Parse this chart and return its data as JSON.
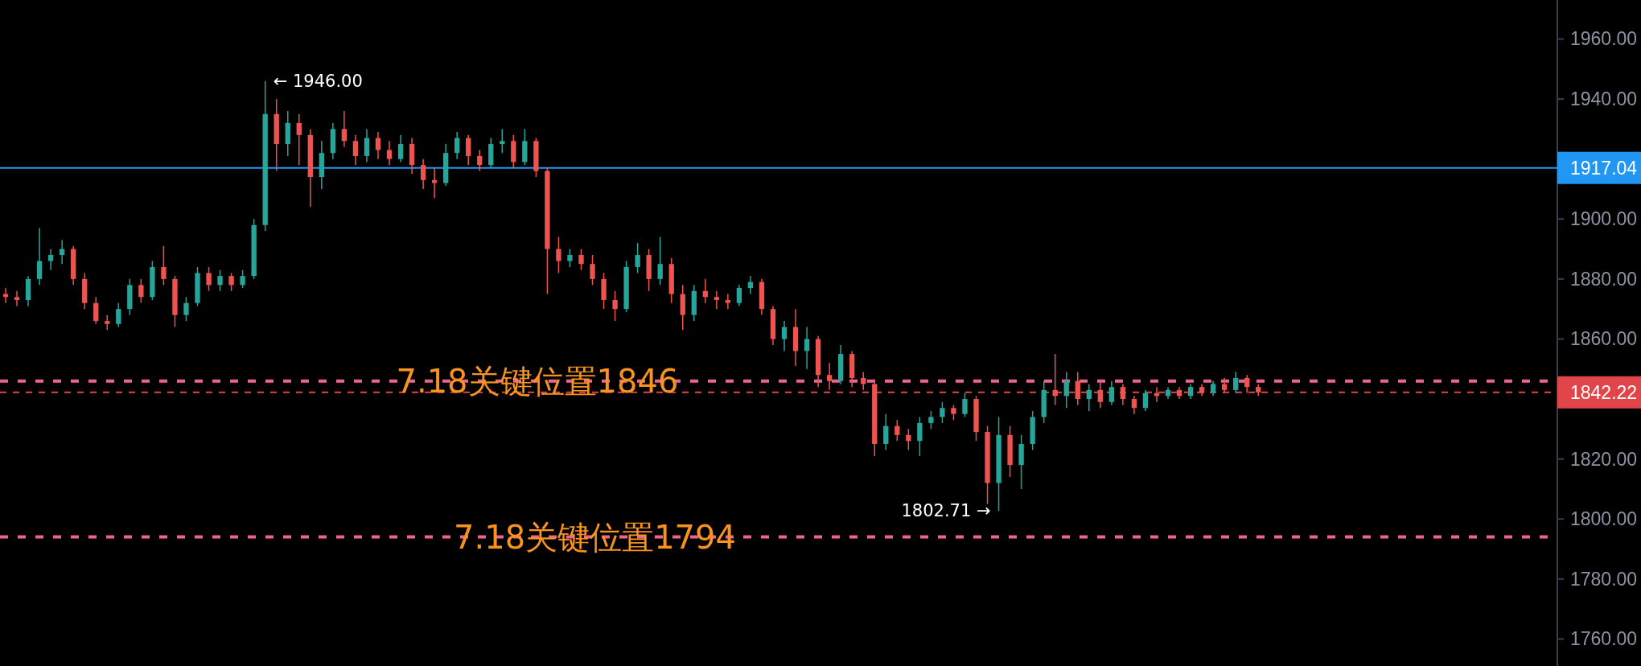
{
  "chart_data": {
    "type": "candlestick",
    "categories": [
      null,
      null,
      null,
      null,
      null,
      null,
      null,
      null,
      null,
      null,
      null,
      null,
      null,
      null,
      null,
      null,
      null,
      null,
      null,
      null,
      null,
      null,
      null,
      null,
      null,
      null,
      null,
      null,
      null,
      null,
      null,
      null,
      null,
      null,
      null,
      null,
      null,
      null,
      null,
      null,
      null,
      null,
      null,
      null,
      null,
      null,
      null,
      null,
      null,
      null,
      null,
      null,
      null,
      null,
      null,
      null,
      null,
      null,
      null,
      null,
      null,
      null,
      null,
      null,
      null,
      null,
      null,
      null,
      null,
      null,
      null,
      null,
      null,
      null,
      null,
      null,
      null,
      null,
      null,
      null,
      null,
      null,
      null,
      null,
      null,
      null,
      null,
      null,
      null,
      null,
      null,
      null,
      null,
      null,
      null,
      null,
      null,
      null,
      null,
      null,
      null,
      null,
      null,
      null,
      null,
      null,
      null,
      null,
      null,
      null,
      null,
      null,
      null,
      null,
      null,
      null,
      null,
      null,
      null,
      null,
      null,
      null,
      null,
      null,
      null,
      null,
      null,
      null,
      null,
      null,
      null,
      null,
      null,
      null,
      null,
      null,
      null,
      null
    ],
    "ohlc": [
      [
        1875,
        1877,
        1872,
        1874
      ],
      [
        1874,
        1876,
        1871,
        1873
      ],
      [
        1873,
        1881,
        1871,
        1880
      ],
      [
        1880,
        1897,
        1878,
        1886
      ],
      [
        1886,
        1890,
        1883,
        1888
      ],
      [
        1888,
        1893,
        1885,
        1890
      ],
      [
        1890,
        1891,
        1878,
        1880
      ],
      [
        1880,
        1882,
        1870,
        1872
      ],
      [
        1872,
        1874,
        1865,
        1866
      ],
      [
        1866,
        1868,
        1863,
        1865
      ],
      [
        1865,
        1872,
        1864,
        1870
      ],
      [
        1870,
        1880,
        1868,
        1878
      ],
      [
        1878,
        1880,
        1872,
        1874
      ],
      [
        1874,
        1886,
        1873,
        1884
      ],
      [
        1884,
        1891,
        1878,
        1880
      ],
      [
        1880,
        1881,
        1864,
        1868
      ],
      [
        1868,
        1874,
        1866,
        1872
      ],
      [
        1872,
        1884,
        1871,
        1882
      ],
      [
        1882,
        1884,
        1876,
        1878
      ],
      [
        1878,
        1883,
        1876,
        1881
      ],
      [
        1881,
        1882,
        1876,
        1878
      ],
      [
        1878,
        1883,
        1877,
        1881
      ],
      [
        1881,
        1900,
        1880,
        1898
      ],
      [
        1898,
        1946,
        1896,
        1935
      ],
      [
        1935,
        1940,
        1916,
        1925
      ],
      [
        1925,
        1936,
        1921,
        1932
      ],
      [
        1932,
        1935,
        1918,
        1928
      ],
      [
        1928,
        1930,
        1904,
        1914
      ],
      [
        1914,
        1926,
        1910,
        1922
      ],
      [
        1922,
        1932,
        1920,
        1930
      ],
      [
        1930,
        1936,
        1924,
        1926
      ],
      [
        1926,
        1928,
        1918,
        1921
      ],
      [
        1921,
        1930,
        1919,
        1927
      ],
      [
        1927,
        1929,
        1920,
        1923
      ],
      [
        1923,
        1926,
        1918,
        1920
      ],
      [
        1920,
        1928,
        1919,
        1925
      ],
      [
        1925,
        1927,
        1915,
        1918
      ],
      [
        1918,
        1920,
        1910,
        1913
      ],
      [
        1913,
        1917,
        1907,
        1912
      ],
      [
        1912,
        1925,
        1911,
        1922
      ],
      [
        1922,
        1929,
        1920,
        1927
      ],
      [
        1927,
        1928,
        1918,
        1921
      ],
      [
        1921,
        1923,
        1916,
        1918
      ],
      [
        1918,
        1927,
        1917,
        1925
      ],
      [
        1925,
        1930,
        1922,
        1926
      ],
      [
        1926,
        1928,
        1917,
        1919
      ],
      [
        1919,
        1930,
        1918,
        1926
      ],
      [
        1926,
        1927,
        1914,
        1916
      ],
      [
        1916,
        1917,
        1875,
        1890
      ],
      [
        1890,
        1894,
        1882,
        1886
      ],
      [
        1886,
        1890,
        1884,
        1888
      ],
      [
        1888,
        1890,
        1883,
        1885
      ],
      [
        1885,
        1888,
        1878,
        1880
      ],
      [
        1880,
        1882,
        1870,
        1873
      ],
      [
        1873,
        1876,
        1866,
        1870
      ],
      [
        1870,
        1886,
        1869,
        1884
      ],
      [
        1884,
        1892,
        1882,
        1888
      ],
      [
        1888,
        1890,
        1876,
        1880
      ],
      [
        1880,
        1894,
        1878,
        1885
      ],
      [
        1885,
        1887,
        1872,
        1875
      ],
      [
        1875,
        1878,
        1863,
        1868
      ],
      [
        1868,
        1878,
        1866,
        1876
      ],
      [
        1876,
        1880,
        1872,
        1874
      ],
      [
        1874,
        1876,
        1870,
        1873
      ],
      [
        1873,
        1875,
        1870,
        1872
      ],
      [
        1872,
        1878,
        1871,
        1877
      ],
      [
        1877,
        1881,
        1875,
        1879
      ],
      [
        1879,
        1880,
        1868,
        1870
      ],
      [
        1870,
        1871,
        1858,
        1860
      ],
      [
        1860,
        1866,
        1856,
        1864
      ],
      [
        1864,
        1870,
        1851,
        1856
      ],
      [
        1856,
        1864,
        1850,
        1860
      ],
      [
        1860,
        1861,
        1844,
        1848
      ],
      [
        1848,
        1852,
        1843,
        1846
      ],
      [
        1846,
        1858,
        1845,
        1855
      ],
      [
        1855,
        1856,
        1844,
        1847
      ],
      [
        1847,
        1849,
        1843,
        1845
      ],
      [
        1845,
        1846,
        1821,
        1825
      ],
      [
        1825,
        1835,
        1823,
        1831
      ],
      [
        1831,
        1833,
        1826,
        1828
      ],
      [
        1828,
        1830,
        1823,
        1826
      ],
      [
        1826,
        1834,
        1821,
        1832
      ],
      [
        1832,
        1836,
        1830,
        1834
      ],
      [
        1834,
        1839,
        1832,
        1837
      ],
      [
        1837,
        1838,
        1833,
        1835
      ],
      [
        1835,
        1842,
        1834,
        1840
      ],
      [
        1840,
        1841,
        1826,
        1829
      ],
      [
        1829,
        1831,
        1805,
        1812
      ],
      [
        1812,
        1834,
        1802.71,
        1828
      ],
      [
        1828,
        1831,
        1814,
        1818
      ],
      [
        1818,
        1828,
        1810,
        1825
      ],
      [
        1825,
        1836,
        1823,
        1834
      ],
      [
        1834,
        1846,
        1832,
        1843
      ],
      [
        1843,
        1855,
        1838,
        1841
      ],
      [
        1841,
        1849,
        1837,
        1846
      ],
      [
        1846,
        1849,
        1838,
        1840
      ],
      [
        1840,
        1845,
        1836,
        1843
      ],
      [
        1843,
        1846,
        1837,
        1839
      ],
      [
        1839,
        1846,
        1838,
        1844
      ],
      [
        1844,
        1845,
        1838,
        1840
      ],
      [
        1840,
        1841,
        1835,
        1837
      ],
      [
        1837,
        1843,
        1836,
        1842
      ],
      [
        1842,
        1844,
        1839,
        1841
      ],
      [
        1841,
        1844,
        1840,
        1843
      ],
      [
        1843,
        1844,
        1840,
        1841
      ],
      [
        1841,
        1845,
        1840,
        1844
      ],
      [
        1844,
        1845,
        1841,
        1842
      ],
      [
        1842,
        1846,
        1841,
        1845
      ],
      [
        1845,
        1847,
        1842,
        1843
      ],
      [
        1843,
        1849,
        1842,
        1847
      ],
      [
        1847,
        1848,
        1842,
        1844
      ],
      [
        1844,
        1845,
        1841,
        1842.22
      ],
      null,
      null,
      null,
      null,
      null,
      null,
      null,
      null,
      null,
      null,
      null,
      null,
      null,
      null,
      null,
      null,
      null,
      null,
      null,
      null,
      null,
      null,
      null,
      null,
      null,
      null
    ],
    "ylim": [
      1751,
      1973
    ],
    "yticks": [
      {
        "value": 1760,
        "label": "1760.00"
      },
      {
        "value": 1780,
        "label": "1780.00"
      },
      {
        "value": 1800,
        "label": "1800.00"
      },
      {
        "value": 1820,
        "label": "1820.00"
      },
      {
        "value": 1860,
        "label": "1860.00"
      },
      {
        "value": 1880,
        "label": "1880.00"
      },
      {
        "value": 1900,
        "label": "1900.00"
      },
      {
        "value": 1940,
        "label": "1940.00"
      },
      {
        "value": 1960,
        "label": "1960.00"
      }
    ],
    "tick_labels": "y",
    "ref_lines": [
      {
        "axis": "y",
        "value": 1917.04,
        "label": "1917.04",
        "color": "#2196f3",
        "line_style": "solid"
      },
      {
        "axis": "y",
        "value": 1846,
        "label": "7.18关键位置1846",
        "color": "#f06292",
        "line_style": "dotted"
      },
      {
        "axis": "y",
        "value": 1842.22,
        "label": "1842.22",
        "color": "#e0454a",
        "line_style": "dashed"
      },
      {
        "axis": "y",
        "value": 1794,
        "label": "7.18关键位置1794",
        "color": "#f06292",
        "line_style": "dotted"
      }
    ],
    "annotations": [
      "← 1946.00",
      "1802.71 →"
    ]
  }
}
